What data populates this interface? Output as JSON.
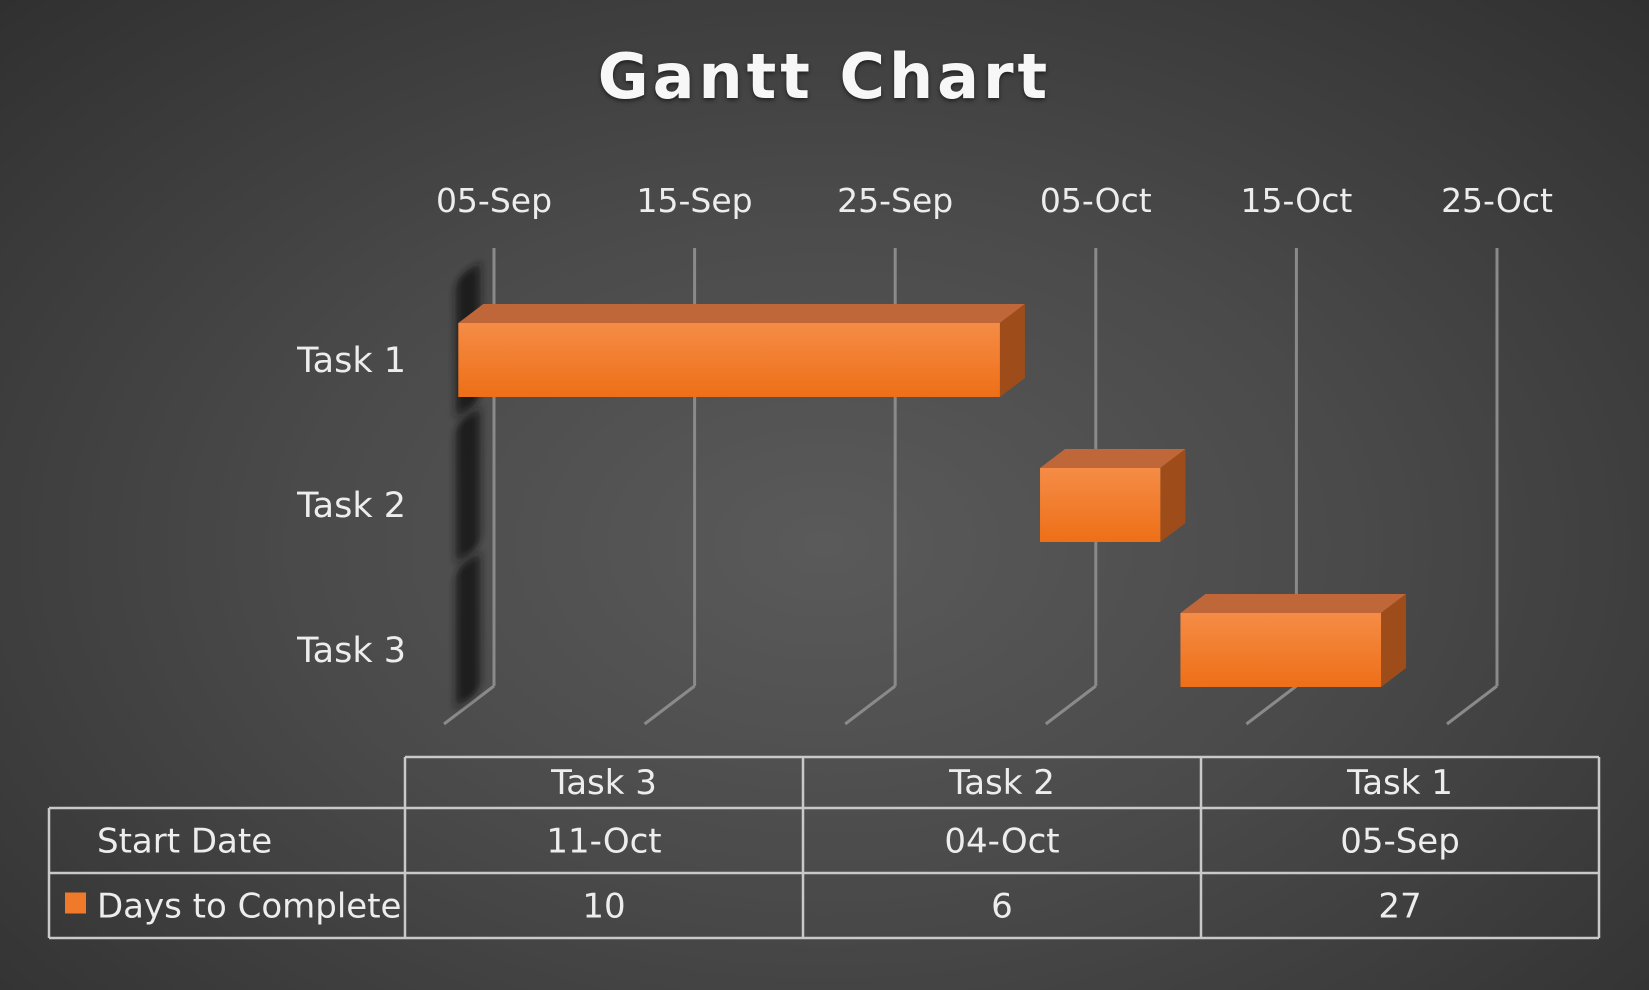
{
  "chart_data": {
    "type": "bar",
    "title": "Gantt Chart",
    "x_ticks": [
      "05-Sep",
      "15-Sep",
      "25-Sep",
      "05-Oct",
      "15-Oct",
      "25-Oct"
    ],
    "categories": [
      "Task 1",
      "Task 2",
      "Task 3"
    ],
    "series": [
      {
        "name": "Start Date",
        "values": [
          "05-Sep",
          "04-Oct",
          "11-Oct"
        ],
        "visible": false
      },
      {
        "name": "Days to Complete",
        "values": [
          27,
          6,
          10
        ],
        "color": "#f07a2a"
      }
    ],
    "data_table": {
      "columns": [
        "Task 3",
        "Task 2",
        "Task 1"
      ],
      "rows": [
        {
          "label": "Start Date",
          "values": [
            "11-Oct",
            "04-Oct",
            "05-Sep"
          ]
        },
        {
          "label": "Days to Complete",
          "values": [
            "10",
            "6",
            "27"
          ]
        }
      ]
    },
    "grid": true,
    "style": "3d"
  }
}
